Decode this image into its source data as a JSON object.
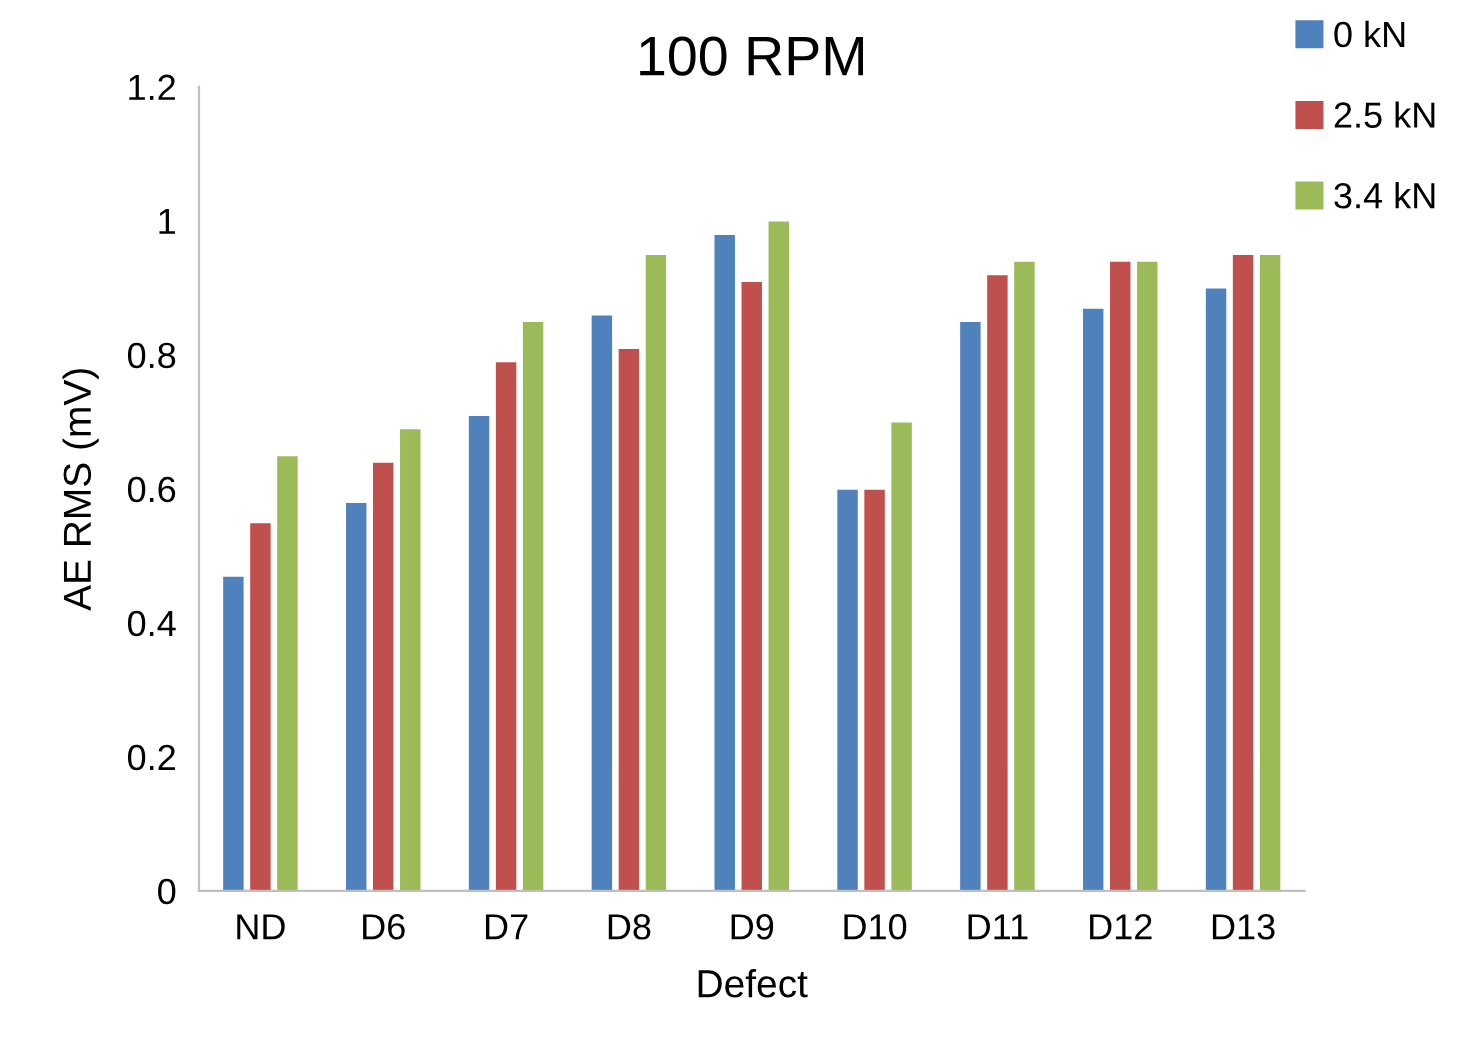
{
  "chart_data": {
    "type": "bar",
    "title": "100 RPM",
    "xlabel": "Defect",
    "ylabel": "AE RMS (mV)",
    "categories": [
      "ND",
      "D6",
      "D7",
      "D8",
      "D9",
      "D10",
      "D11",
      "D12",
      "D13"
    ],
    "series": [
      {
        "name": "0 kN",
        "color": "#4f81bd",
        "values": [
          0.47,
          0.58,
          0.71,
          0.86,
          0.98,
          0.6,
          0.85,
          0.87,
          0.9
        ]
      },
      {
        "name": "2.5 kN",
        "color": "#c0504d",
        "values": [
          0.55,
          0.64,
          0.79,
          0.81,
          0.91,
          0.6,
          0.92,
          0.94,
          0.95
        ]
      },
      {
        "name": "3.4 kN",
        "color": "#9bbb59",
        "values": [
          0.65,
          0.69,
          0.85,
          0.95,
          1.0,
          0.7,
          0.94,
          0.94,
          0.95
        ]
      }
    ],
    "ylim": [
      0,
      1.2
    ],
    "yticks": [
      0,
      0.2,
      0.4,
      0.6,
      0.8,
      1,
      1.2
    ],
    "grid": false,
    "legend": "top right"
  }
}
